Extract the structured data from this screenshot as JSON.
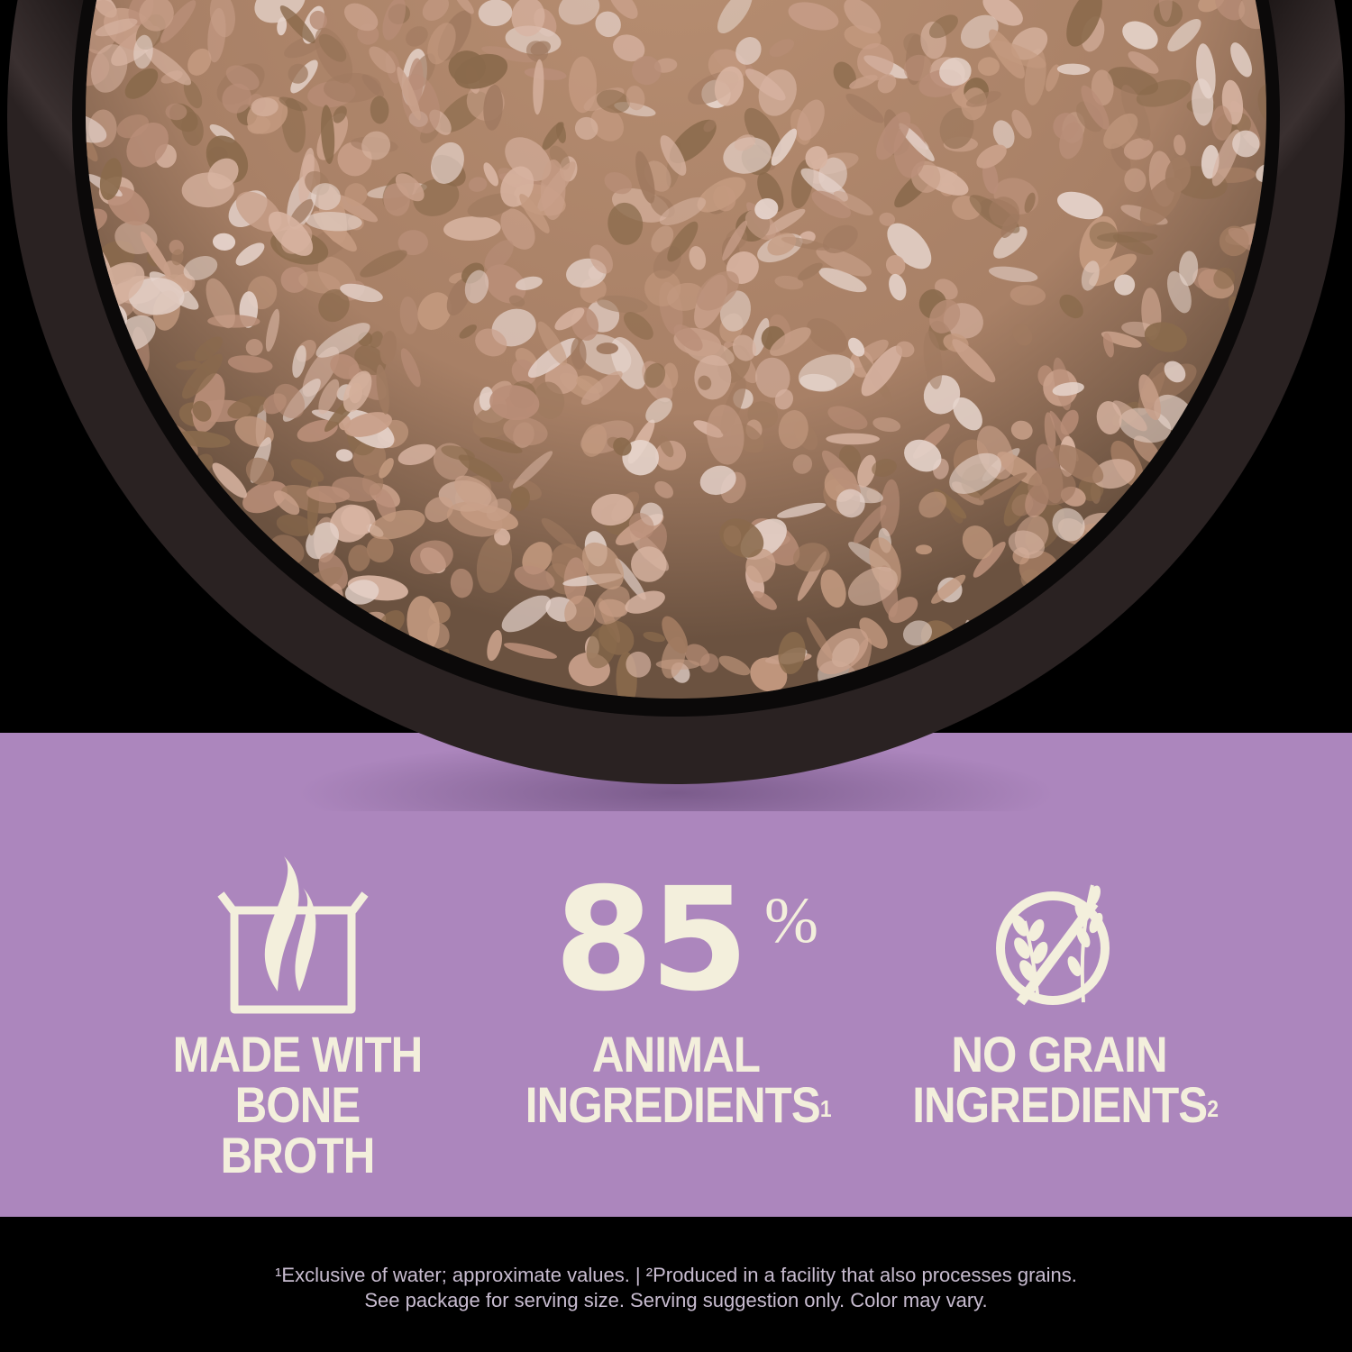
{
  "colors": {
    "purple": "#ac86bd",
    "cream": "#f3efdc",
    "background": "#000000",
    "food": "#b0886e",
    "bowl": "#1a1414"
  },
  "features": [
    {
      "icon": "steaming-pot-icon",
      "line1": "MADE WITH",
      "line2": "BONE BROTH",
      "sup": ""
    },
    {
      "value": "85",
      "unit": "%",
      "line1": "ANIMAL",
      "line2": "INGREDIENTS",
      "sup": "1"
    },
    {
      "icon": "no-grain-icon",
      "line1": "NO GRAIN",
      "line2": "INGREDIENTS",
      "sup": "2"
    }
  ],
  "footnote": {
    "line1": "¹Exclusive of water; approximate values. | ²Produced in a facility that also processes grains.",
    "line2": "See package for serving size. Serving suggestion only. Color may vary."
  }
}
